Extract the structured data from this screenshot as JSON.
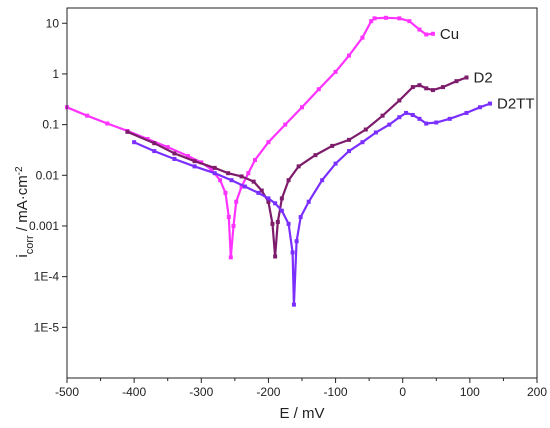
{
  "chart_data": {
    "type": "line",
    "xlabel": "E / mV",
    "ylabel": {
      "main": "i",
      "sub": "corr",
      "rest": " / mA·cm",
      "sup": "-2"
    },
    "xlim": [
      -500,
      200
    ],
    "ylim": [
      1e-06,
      20
    ],
    "yscale": "log",
    "xticks": [
      -500,
      -400,
      -300,
      -200,
      -100,
      0,
      100,
      200
    ],
    "xtick_labels": [
      "-500",
      "-400",
      "-300",
      "-200",
      "-100",
      "0",
      "100",
      "200"
    ],
    "yticks": [
      1e-05,
      0.0001,
      0.001,
      0.01,
      0.1,
      1,
      10
    ],
    "ytick_labels": [
      "1E-5",
      "1E-4",
      "0.001",
      "0.01",
      "0.1",
      "1",
      "10"
    ],
    "grid": false,
    "legend": "inline labels at line ends",
    "series": [
      {
        "name": "Cu",
        "color": "#ff33ff",
        "points": [
          [
            -500,
            0.22
          ],
          [
            -470,
            0.15
          ],
          [
            -440,
            0.105
          ],
          [
            -410,
            0.075
          ],
          [
            -380,
            0.052
          ],
          [
            -350,
            0.036
          ],
          [
            -320,
            0.024
          ],
          [
            -300,
            0.018
          ],
          [
            -285,
            0.013
          ],
          [
            -272,
            0.008
          ],
          [
            -264,
            0.0045
          ],
          [
            -259,
            0.0015
          ],
          [
            -256,
            0.00024
          ],
          [
            -252,
            0.001
          ],
          [
            -248,
            0.003
          ],
          [
            -240,
            0.006
          ],
          [
            -230,
            0.011
          ],
          [
            -220,
            0.02
          ],
          [
            -200,
            0.045
          ],
          [
            -175,
            0.1
          ],
          [
            -150,
            0.22
          ],
          [
            -125,
            0.5
          ],
          [
            -100,
            1.1
          ],
          [
            -80,
            2.3
          ],
          [
            -60,
            5.2
          ],
          [
            -47,
            11
          ],
          [
            -42,
            12.5
          ],
          [
            -25,
            12.8
          ],
          [
            -5,
            12.5
          ],
          [
            10,
            11
          ],
          [
            25,
            7.5
          ],
          [
            35,
            6
          ],
          [
            45,
            6.2
          ]
        ]
      },
      {
        "name": "D2",
        "color": "#7d1c6b",
        "points": [
          [
            -410,
            0.072
          ],
          [
            -370,
            0.043
          ],
          [
            -340,
            0.027
          ],
          [
            -310,
            0.019
          ],
          [
            -280,
            0.014
          ],
          [
            -260,
            0.011
          ],
          [
            -240,
            0.0095
          ],
          [
            -222,
            0.0075
          ],
          [
            -210,
            0.005
          ],
          [
            -200,
            0.003
          ],
          [
            -194,
            0.0011
          ],
          [
            -190,
            0.00025
          ],
          [
            -186,
            0.0012
          ],
          [
            -180,
            0.0035
          ],
          [
            -170,
            0.008
          ],
          [
            -155,
            0.015
          ],
          [
            -130,
            0.025
          ],
          [
            -105,
            0.038
          ],
          [
            -80,
            0.05
          ],
          [
            -55,
            0.08
          ],
          [
            -30,
            0.15
          ],
          [
            -5,
            0.3
          ],
          [
            15,
            0.55
          ],
          [
            25,
            0.6
          ],
          [
            35,
            0.52
          ],
          [
            45,
            0.48
          ],
          [
            60,
            0.55
          ],
          [
            80,
            0.72
          ],
          [
            95,
            0.85
          ]
        ]
      },
      {
        "name": "D2TT",
        "color": "#7b2fff",
        "points": [
          [
            -400,
            0.045
          ],
          [
            -370,
            0.03
          ],
          [
            -340,
            0.021
          ],
          [
            -310,
            0.015
          ],
          [
            -280,
            0.011
          ],
          [
            -255,
            0.008
          ],
          [
            -235,
            0.006
          ],
          [
            -215,
            0.0045
          ],
          [
            -200,
            0.0035
          ],
          [
            -190,
            0.0028
          ],
          [
            -180,
            0.002
          ],
          [
            -170,
            0.0011
          ],
          [
            -164,
            0.0003
          ],
          [
            -162,
            2.8e-05
          ],
          [
            -158,
            0.0005
          ],
          [
            -152,
            0.0015
          ],
          [
            -140,
            0.003
          ],
          [
            -120,
            0.008
          ],
          [
            -100,
            0.017
          ],
          [
            -80,
            0.03
          ],
          [
            -60,
            0.045
          ],
          [
            -40,
            0.07
          ],
          [
            -20,
            0.1
          ],
          [
            -5,
            0.14
          ],
          [
            5,
            0.17
          ],
          [
            15,
            0.155
          ],
          [
            25,
            0.13
          ],
          [
            35,
            0.105
          ],
          [
            50,
            0.11
          ],
          [
            70,
            0.13
          ],
          [
            95,
            0.17
          ],
          [
            115,
            0.22
          ],
          [
            130,
            0.26
          ]
        ]
      }
    ]
  }
}
